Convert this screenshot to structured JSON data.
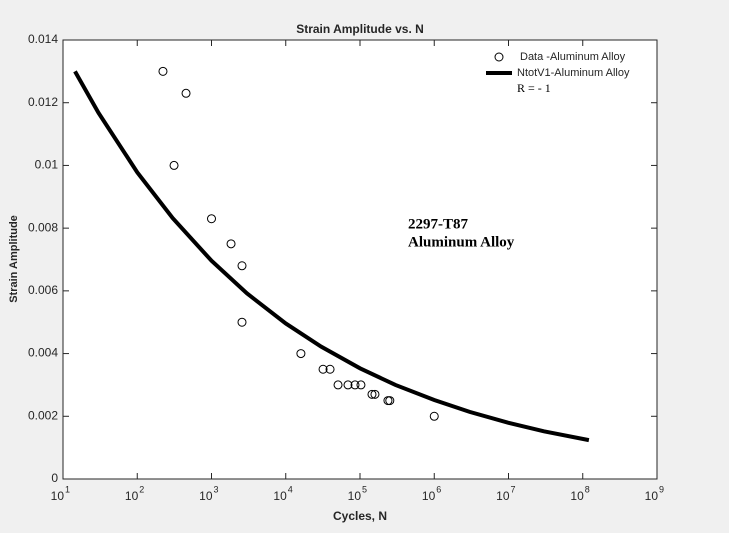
{
  "chart_data": {
    "type": "scatter",
    "title": "Strain Amplitude vs. N",
    "x_label": "Cycles, N",
    "y_label": "Strain Amplitude",
    "xscale": "log",
    "xlim": [
      10,
      1000000000
    ],
    "xticks": [
      {
        "value": 10,
        "label": "10",
        "exponent": "1"
      },
      {
        "value": 100,
        "label": "10",
        "exponent": "2"
      },
      {
        "value": 1000,
        "label": "10",
        "exponent": "3"
      },
      {
        "value": 10000,
        "label": "10",
        "exponent": "4"
      },
      {
        "value": 100000,
        "label": "10",
        "exponent": "5"
      },
      {
        "value": 1000000,
        "label": "10",
        "exponent": "6"
      },
      {
        "value": 10000000,
        "label": "10",
        "exponent": "7"
      },
      {
        "value": 100000000,
        "label": "10",
        "exponent": "8"
      },
      {
        "value": 1000000000,
        "label": "10",
        "exponent": "9"
      }
    ],
    "ylim": [
      0,
      0.014
    ],
    "yticks": [
      0,
      0.002,
      0.004,
      0.006,
      0.008,
      0.01,
      0.012,
      0.014
    ],
    "grid": false,
    "legend": "upper right",
    "series": [
      {
        "name": "Data -Aluminum Alloy",
        "type": "scatter",
        "color": "#000000",
        "x": [
          222,
          454,
          313,
          1000,
          1833,
          2575,
          2575,
          16000,
          31800,
          39500,
          50600,
          68900,
          85700,
          103000,
          145000,
          159000,
          238000,
          252000,
          1000000
        ],
        "values": [
          0.013,
          0.0123,
          0.01,
          0.0083,
          0.0075,
          0.0068,
          0.005,
          0.004,
          0.0035,
          0.0035,
          0.003,
          0.003,
          0.003,
          0.003,
          0.0027,
          0.0027,
          0.0025,
          0.0025,
          0.002
        ]
      },
      {
        "name": "NtotV1-Aluminum Alloy",
        "type": "line",
        "color": "#000000",
        "x": [
          14.5,
          30,
          100,
          300,
          1000,
          3000,
          10000,
          30000,
          100000,
          300000,
          1000000,
          3000000,
          10000000,
          30000000,
          121000000
        ],
        "values": [
          0.013,
          0.01168,
          0.00978,
          0.00832,
          0.00696,
          0.00592,
          0.00496,
          0.00422,
          0.00353,
          0.003,
          0.00252,
          0.00214,
          0.00179,
          0.00152,
          0.00124
        ]
      }
    ],
    "legend_note": "R = - 1",
    "annotation": [
      "2297-T87",
      "Aluminum Alloy"
    ]
  }
}
